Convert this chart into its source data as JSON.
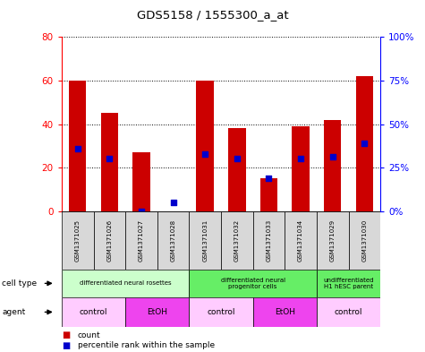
{
  "title": "GDS5158 / 1555300_a_at",
  "samples": [
    "GSM1371025",
    "GSM1371026",
    "GSM1371027",
    "GSM1371028",
    "GSM1371031",
    "GSM1371032",
    "GSM1371033",
    "GSM1371034",
    "GSM1371029",
    "GSM1371030"
  ],
  "counts": [
    60,
    45,
    27,
    0,
    60,
    38,
    15,
    39,
    42,
    62
  ],
  "percentile_ranks": [
    36,
    30,
    0,
    5,
    33,
    30,
    19,
    30,
    31,
    39
  ],
  "left_ylim": [
    0,
    80
  ],
  "right_ylim": [
    0,
    100
  ],
  "left_yticks": [
    0,
    20,
    40,
    60,
    80
  ],
  "right_yticks": [
    0,
    25,
    50,
    75,
    100
  ],
  "right_yticklabels": [
    "0%",
    "25%",
    "50%",
    "75%",
    "100%"
  ],
  "bar_color": "#cc0000",
  "dot_color": "#0000cc",
  "cell_type_groups": [
    {
      "label": "differentiated neural rosettes",
      "start": 0,
      "end": 4,
      "color": "#ccffcc"
    },
    {
      "label": "differentiated neural\nprogenitor cells",
      "start": 4,
      "end": 8,
      "color": "#66ee66"
    },
    {
      "label": "undifferentiated\nH1 hESC parent",
      "start": 8,
      "end": 10,
      "color": "#66ee66"
    }
  ],
  "agent_groups": [
    {
      "label": "control",
      "start": 0,
      "end": 2,
      "color": "#ffccff"
    },
    {
      "label": "EtOH",
      "start": 2,
      "end": 4,
      "color": "#ee44ee"
    },
    {
      "label": "control",
      "start": 4,
      "end": 6,
      "color": "#ffccff"
    },
    {
      "label": "EtOH",
      "start": 6,
      "end": 8,
      "color": "#ee44ee"
    },
    {
      "label": "control",
      "start": 8,
      "end": 10,
      "color": "#ffccff"
    }
  ],
  "cell_type_label": "cell type",
  "agent_label": "agent",
  "legend_count_label": "count",
  "legend_pct_label": "percentile rank within the sample",
  "sample_row_color": "#d8d8d8"
}
